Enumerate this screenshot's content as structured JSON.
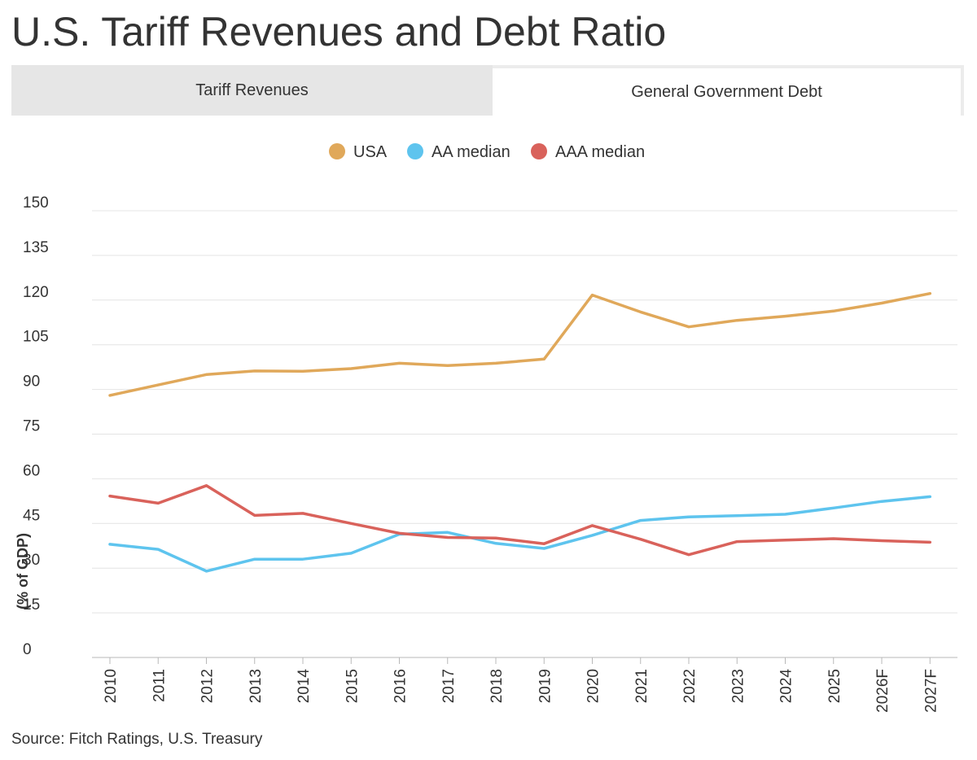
{
  "page": {
    "title": "U.S. Tariff Revenues and Debt Ratio",
    "source": "Source: Fitch Ratings, U.S. Treasury"
  },
  "tabs": [
    {
      "label": "Tariff Revenues",
      "active": false
    },
    {
      "label": "General Government Debt",
      "active": true
    }
  ],
  "chart_data": {
    "type": "line",
    "title": "",
    "xlabel": "",
    "ylabel": "(% of GDP)",
    "ylim": [
      0,
      150
    ],
    "yticks": [
      0,
      15,
      30,
      45,
      60,
      75,
      90,
      105,
      120,
      135,
      150
    ],
    "grid": true,
    "legend_position": "top-center",
    "categories": [
      "2010",
      "2011",
      "2012",
      "2013",
      "2014",
      "2015",
      "2016",
      "2017",
      "2018",
      "2019",
      "2020",
      "2021",
      "2022",
      "2023",
      "2024",
      "2025",
      "2026F",
      "2027F"
    ],
    "series": [
      {
        "name": "USA",
        "color": "#e0a85a",
        "values": [
          88,
          91.5,
          95,
          96.2,
          96.1,
          97,
          98.8,
          98,
          98.8,
          100.2,
          121.7,
          116,
          111,
          113.2,
          114.6,
          116.3,
          119,
          122.2
        ]
      },
      {
        "name": "AA median",
        "color": "#5ec4ee",
        "values": [
          38,
          36.3,
          29,
          33,
          33,
          35,
          41.4,
          42,
          38.3,
          36.6,
          41,
          46,
          47.2,
          47.6,
          48.1,
          50.2,
          52.4,
          54
        ]
      },
      {
        "name": "AAA median",
        "color": "#d9625b",
        "values": [
          54.2,
          51.8,
          57.7,
          47.7,
          48.4,
          45,
          41.7,
          40.3,
          40.1,
          38.2,
          44.3,
          39.7,
          34.5,
          38.9,
          39.4,
          39.9,
          39.2,
          38.7
        ]
      }
    ]
  }
}
